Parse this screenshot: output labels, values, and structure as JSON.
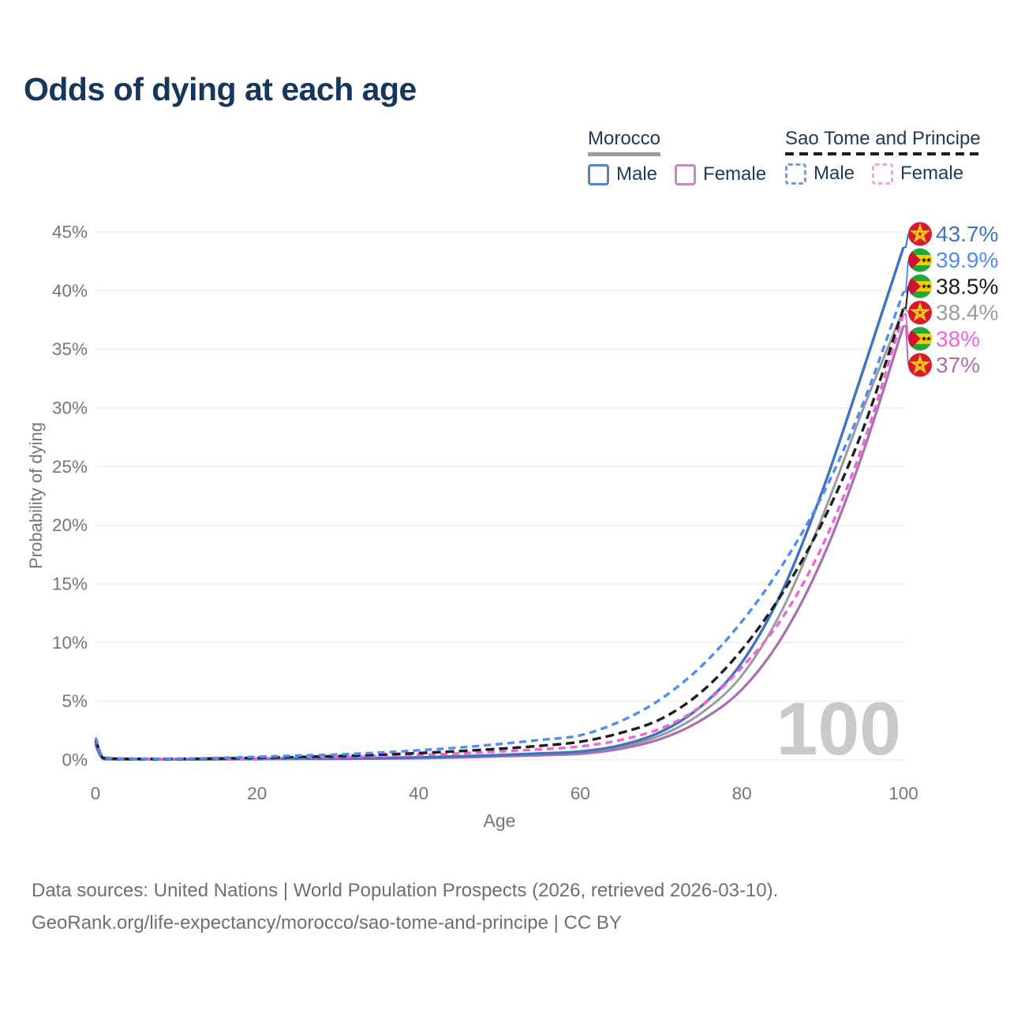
{
  "title": "Odds of dying at each age",
  "watermark": "100",
  "colors": {
    "title_text": "#16365c",
    "legend_text": "#1d3a5a",
    "axis_text": "#757575",
    "grid": "#ececec",
    "watermark": "#c9c9c9",
    "footer_text": "#6f6f6f",
    "flags": {
      "morocco_red": "#d61a30",
      "morocco_star_yellow": "#fcd116",
      "stp_green": "#23a638",
      "stp_yellow": "#ffce00",
      "stp_red": "#d21034",
      "stp_star_black": "#111111"
    }
  },
  "legend": {
    "groups": [
      {
        "label": "Morocco",
        "line_style": "solid",
        "underline_color": "#9b9b9b",
        "items": [
          {
            "label": "Male",
            "color": "#5585c8",
            "style": "solid"
          },
          {
            "label": "Female",
            "color": "#c488c4",
            "style": "solid"
          }
        ]
      },
      {
        "label": "Sao Tome and Principe",
        "line_style": "dashed",
        "underline_color": "#1c1c1c",
        "items": [
          {
            "label": "Male",
            "color": "#66a0f5",
            "style": "dashed"
          },
          {
            "label": "Female",
            "color": "#f9a0e5",
            "style": "dashed"
          }
        ]
      }
    ]
  },
  "chart_data": {
    "type": "line",
    "title": "Odds of dying at each age",
    "xlabel": "Age",
    "ylabel": "Probability of dying",
    "xlim": [
      0,
      100
    ],
    "ylim": [
      0,
      45
    ],
    "grid": "horizontal",
    "legend_position": "top-right",
    "x_ticks": [
      0,
      20,
      40,
      60,
      80,
      100
    ],
    "x_tick_labels": [
      "0",
      "20",
      "40",
      "60",
      "80",
      "100"
    ],
    "y_ticks": [
      0,
      5,
      10,
      15,
      20,
      25,
      30,
      35,
      40,
      45
    ],
    "y_tick_labels": [
      "0%",
      "5%",
      "10%",
      "15%",
      "20%",
      "25%",
      "30%",
      "35%",
      "40%",
      "45%"
    ],
    "x": [
      0,
      1,
      5,
      10,
      15,
      20,
      25,
      30,
      35,
      40,
      45,
      50,
      55,
      60,
      65,
      70,
      75,
      80,
      85,
      90,
      95,
      100
    ],
    "series": [
      {
        "id": "morocco-total",
        "name": "Morocco",
        "sex": "Total",
        "flag": "morocco",
        "style": "solid",
        "color": "#9b9b9b",
        "width": 3.0,
        "end_label": "38.4%",
        "end_value": 38.4,
        "values": [
          1.3,
          0.08,
          0.04,
          0.04,
          0.06,
          0.08,
          0.1,
          0.12,
          0.14,
          0.18,
          0.26,
          0.36,
          0.48,
          0.62,
          1.1,
          2.1,
          4.0,
          7.2,
          12.8,
          20.8,
          29.9,
          38.4
        ]
      },
      {
        "id": "morocco-female",
        "name": "Morocco Female",
        "sex": "Female",
        "flag": "morocco",
        "style": "solid",
        "color": "#a96fae",
        "width": 3.2,
        "end_label": "37%",
        "end_value": 37.0,
        "values": [
          1.2,
          0.07,
          0.04,
          0.04,
          0.05,
          0.07,
          0.08,
          0.09,
          0.11,
          0.14,
          0.21,
          0.3,
          0.4,
          0.52,
          0.95,
          1.8,
          3.4,
          6.0,
          10.5,
          17.2,
          26.2,
          37.0
        ]
      },
      {
        "id": "morocco-male",
        "name": "Morocco Male",
        "sex": "Male",
        "flag": "morocco",
        "style": "solid",
        "color": "#3d74c0",
        "width": 3.4,
        "end_label": "43.7%",
        "end_value": 43.7,
        "values": [
          1.4,
          0.09,
          0.05,
          0.05,
          0.07,
          0.1,
          0.12,
          0.14,
          0.17,
          0.22,
          0.3,
          0.42,
          0.55,
          0.72,
          1.25,
          2.4,
          4.6,
          8.3,
          14.4,
          23.0,
          33.2,
          43.7
        ]
      },
      {
        "id": "stp-female",
        "name": "Sao Tome and Principe Female",
        "sex": "Female",
        "flag": "stp",
        "style": "dashed",
        "color": "#f263d6",
        "width": 3.4,
        "dash": "9 6",
        "end_label": "38%",
        "end_value": 38.0,
        "values": [
          1.5,
          0.13,
          0.07,
          0.07,
          0.09,
          0.13,
          0.18,
          0.24,
          0.32,
          0.42,
          0.55,
          0.72,
          0.9,
          1.15,
          1.7,
          2.7,
          4.6,
          7.9,
          12.1,
          18.3,
          26.9,
          38.0
        ]
      },
      {
        "id": "stp-total",
        "name": "Sao Tome and Principe",
        "sex": "Total",
        "flag": "stp",
        "style": "dashed",
        "color": "#1d1d1d",
        "width": 3.4,
        "dash": "11 6",
        "end_label": "38.5%",
        "end_value": 38.5,
        "values": [
          1.7,
          0.16,
          0.09,
          0.09,
          0.12,
          0.18,
          0.25,
          0.33,
          0.44,
          0.58,
          0.75,
          0.95,
          1.2,
          1.55,
          2.3,
          3.5,
          5.8,
          9.4,
          14.2,
          20.3,
          28.2,
          38.5
        ]
      },
      {
        "id": "stp-male",
        "name": "Sao Tome and Principe Male",
        "sex": "Male",
        "flag": "stp",
        "style": "dashed",
        "color": "#4f8df2",
        "width": 3.4,
        "dash": "9 6",
        "end_label": "39.9%",
        "end_value": 39.9,
        "values": [
          1.9,
          0.2,
          0.11,
          0.11,
          0.16,
          0.26,
          0.36,
          0.46,
          0.62,
          0.82,
          1.05,
          1.35,
          1.7,
          2.1,
          3.3,
          5.2,
          8.0,
          11.8,
          16.6,
          22.6,
          30.4,
          39.9
        ]
      }
    ]
  },
  "footer": {
    "line1": "Data sources: United Nations | World Population Prospects (2026, retrieved 2026-03-10).",
    "line2": "GeoRank.org/life-expectancy/morocco/sao-tome-and-principe | CC BY"
  }
}
